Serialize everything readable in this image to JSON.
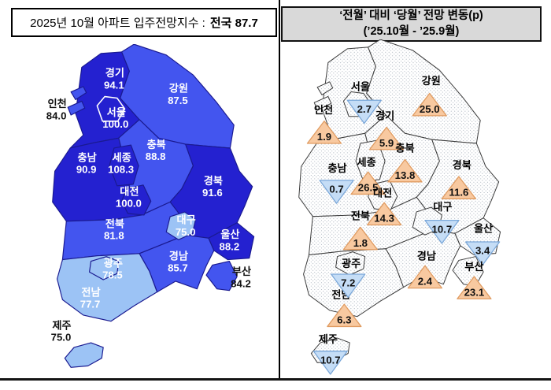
{
  "colors": {
    "dark_blue": "#2421D0",
    "medium_blue": "#4355EF",
    "light_blue": "#9CC3F5",
    "map_border": "#1A1A90",
    "seoul_outline": "#FFFFFF",
    "right_map_border": "#3A3A3A",
    "dot_color": "#9AA4B0",
    "tri_up_fill": "#F8C9A0",
    "tri_up_stroke": "#E09B60",
    "tri_down_fill": "#C5DDF6",
    "tri_down_stroke": "#7AA7D9",
    "header_right_bg": "#D9D9D9",
    "label_on_map": "#FFFFFF",
    "label_off_map": "#111111"
  },
  "left_panel": {
    "title_prefix": "2025년 10월 아파트 입주전망지수 :",
    "title_strong": "전국 87.7"
  },
  "right_panel": {
    "title_line1": "‘전월’ 대비 ‘당월’ 전망 변동(p)",
    "title_line2": "(’25.10월 - ’25.9월)"
  },
  "chart_data": [
    {
      "type": "choropleth_map",
      "title": "2025년 10월 아파트 입주전망지수",
      "national_label": "전국",
      "national_value": 87.7,
      "unit": "지수",
      "shade_meaning": "dark=higher index, light=lower index",
      "regions": [
        {
          "id": "gyeonggi",
          "name": "경기",
          "value": 94.1,
          "shade": "dark",
          "label_placement": "on-map"
        },
        {
          "id": "seoul",
          "name": "서울",
          "value": 100.0,
          "shade": "dark",
          "label_placement": "on-map"
        },
        {
          "id": "incheon",
          "name": "인천",
          "value": 84.0,
          "shade": "medium",
          "label_placement": "off-map"
        },
        {
          "id": "gangwon",
          "name": "강원",
          "value": 87.5,
          "shade": "medium",
          "label_placement": "on-map"
        },
        {
          "id": "chungbuk",
          "name": "충북",
          "value": 88.8,
          "shade": "medium",
          "label_placement": "on-map"
        },
        {
          "id": "sejong",
          "name": "세종",
          "value": 108.3,
          "shade": "dark",
          "label_placement": "on-map"
        },
        {
          "id": "chungnam",
          "name": "충남",
          "value": 90.9,
          "shade": "dark",
          "label_placement": "on-map"
        },
        {
          "id": "daejeon",
          "name": "대전",
          "value": 100.0,
          "shade": "dark",
          "label_placement": "on-map"
        },
        {
          "id": "gyeongbuk",
          "name": "경북",
          "value": 91.6,
          "shade": "dark",
          "label_placement": "on-map"
        },
        {
          "id": "daegu",
          "name": "대구",
          "value": 75.0,
          "shade": "light",
          "label_placement": "on-map"
        },
        {
          "id": "ulsan",
          "name": "울산",
          "value": 88.2,
          "shade": "dark",
          "label_placement": "on-map"
        },
        {
          "id": "jeonbuk",
          "name": "전북",
          "value": 81.8,
          "shade": "medium",
          "label_placement": "on-map"
        },
        {
          "id": "gyeongnam",
          "name": "경남",
          "value": 85.7,
          "shade": "medium",
          "label_placement": "on-map"
        },
        {
          "id": "busan",
          "name": "부산",
          "value": 84.2,
          "shade": "medium",
          "label_placement": "off-map"
        },
        {
          "id": "gwangju",
          "name": "광주",
          "value": 78.5,
          "shade": "light",
          "label_placement": "on-map"
        },
        {
          "id": "jeonnam",
          "name": "전남",
          "value": 77.7,
          "shade": "light",
          "label_placement": "on-map"
        },
        {
          "id": "jeju",
          "name": "제주",
          "value": 75.0,
          "shade": "light",
          "label_placement": "off-map"
        }
      ]
    },
    {
      "type": "choropleth_map",
      "title": "‘전월’ 대비 ‘당월’ 전망 변동(p)",
      "period": "’25.10월 - ’25.9월",
      "unit": "p",
      "marker_meaning": "orange up-triangle = increase, blue down-triangle = decrease",
      "regions": [
        {
          "id": "seoul",
          "name": "서울",
          "change": -2.7
        },
        {
          "id": "incheon",
          "name": "인천",
          "change": 1.9
        },
        {
          "id": "gyeonggi",
          "name": "경기",
          "change": 5.9
        },
        {
          "id": "gangwon",
          "name": "강원",
          "change": 25.0
        },
        {
          "id": "chungbuk",
          "name": "충북",
          "change": 13.8
        },
        {
          "id": "sejong",
          "name": "세종",
          "change": 26.5
        },
        {
          "id": "chungnam",
          "name": "충남",
          "change": -0.7
        },
        {
          "id": "daejeon",
          "name": "대전",
          "change": 14.3
        },
        {
          "id": "gyeongbuk",
          "name": "경북",
          "change": 11.6
        },
        {
          "id": "daegu",
          "name": "대구",
          "change": -10.7
        },
        {
          "id": "ulsan",
          "name": "울산",
          "change": -3.4
        },
        {
          "id": "jeonbuk",
          "name": "전북",
          "change": 1.8
        },
        {
          "id": "gyeongnam",
          "name": "경남",
          "change": 2.4
        },
        {
          "id": "busan",
          "name": "부산",
          "change": 23.1
        },
        {
          "id": "gwangju",
          "name": "광주",
          "change": -7.2
        },
        {
          "id": "jeonnam",
          "name": "전남",
          "change": 6.3
        },
        {
          "id": "jeju",
          "name": "제주",
          "change": -10.7
        }
      ]
    }
  ]
}
